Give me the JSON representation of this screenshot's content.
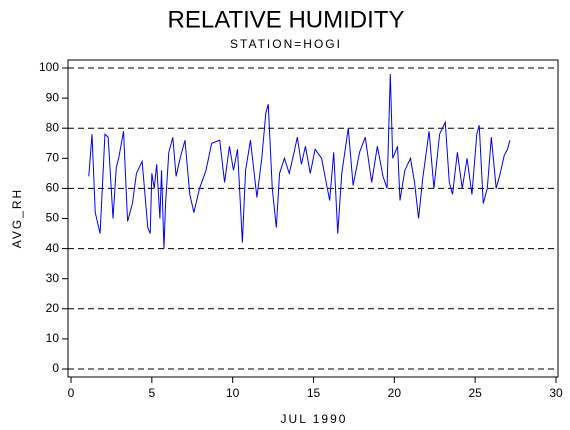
{
  "chart_data": {
    "type": "line",
    "title": "RELATIVE HUMIDITY",
    "subtitle": "STATION=HOGI",
    "x_label": "JUL 1990",
    "y_label": "AVG_RH",
    "xlim": [
      0,
      30
    ],
    "xticks": [
      0,
      5,
      10,
      15,
      20,
      25,
      30
    ],
    "ylim": [
      0,
      100
    ],
    "yticks": [
      0,
      10,
      20,
      30,
      40,
      50,
      60,
      70,
      80,
      90,
      100
    ],
    "grid_lines": [
      0,
      20,
      40,
      60,
      80,
      100
    ],
    "x": [
      1.1,
      1.3,
      1.5,
      1.8,
      2.1,
      2.3,
      2.6,
      2.8,
      2.95,
      3.25,
      3.5,
      3.8,
      4.05,
      4.4,
      4.75,
      4.9,
      5.0,
      5.15,
      5.3,
      5.5,
      5.6,
      5.75,
      5.85,
      6.05,
      6.3,
      6.5,
      6.75,
      7.05,
      7.35,
      7.6,
      7.95,
      8.35,
      8.7,
      9.2,
      9.5,
      9.8,
      10.05,
      10.3,
      10.6,
      10.8,
      11.1,
      11.5,
      11.8,
      12.05,
      12.2,
      12.45,
      12.7,
      12.9,
      13.2,
      13.5,
      13.8,
      14.0,
      14.25,
      14.5,
      14.8,
      15.1,
      15.5,
      16.0,
      16.25,
      16.5,
      16.75,
      17.15,
      17.45,
      17.85,
      18.2,
      18.6,
      18.95,
      19.3,
      19.55,
      19.75,
      19.9,
      20.2,
      20.35,
      20.65,
      21.0,
      21.25,
      21.5,
      21.75,
      22.15,
      22.45,
      22.8,
      23.15,
      23.4,
      23.6,
      23.9,
      24.2,
      24.5,
      24.8,
      25.1,
      25.25,
      25.5,
      25.75,
      26.0,
      26.3,
      26.55,
      26.8,
      27.0,
      27.15
    ],
    "series": [
      {
        "color": "#0000ff",
        "values": [
          64,
          78,
          52,
          45,
          78,
          77,
          50,
          67,
          70,
          79,
          49,
          55,
          65,
          69,
          47,
          45,
          65,
          60,
          68,
          50,
          66,
          40,
          55,
          72,
          77,
          64,
          70,
          76,
          58,
          52,
          60,
          66,
          75,
          76,
          62,
          74,
          66,
          73,
          42,
          66,
          76,
          57,
          70,
          85,
          88,
          60,
          47,
          65,
          70,
          65,
          72,
          77,
          68,
          74,
          65,
          73,
          70,
          56,
          72,
          45,
          65,
          80,
          61,
          72,
          77,
          62,
          74,
          64,
          60,
          98,
          70,
          74,
          56,
          66,
          70,
          62,
          50,
          63,
          79,
          60,
          78,
          82,
          62,
          58,
          72,
          60,
          70,
          58,
          78,
          81,
          55,
          60,
          77,
          60,
          65,
          71,
          73,
          76
        ]
      }
    ]
  }
}
